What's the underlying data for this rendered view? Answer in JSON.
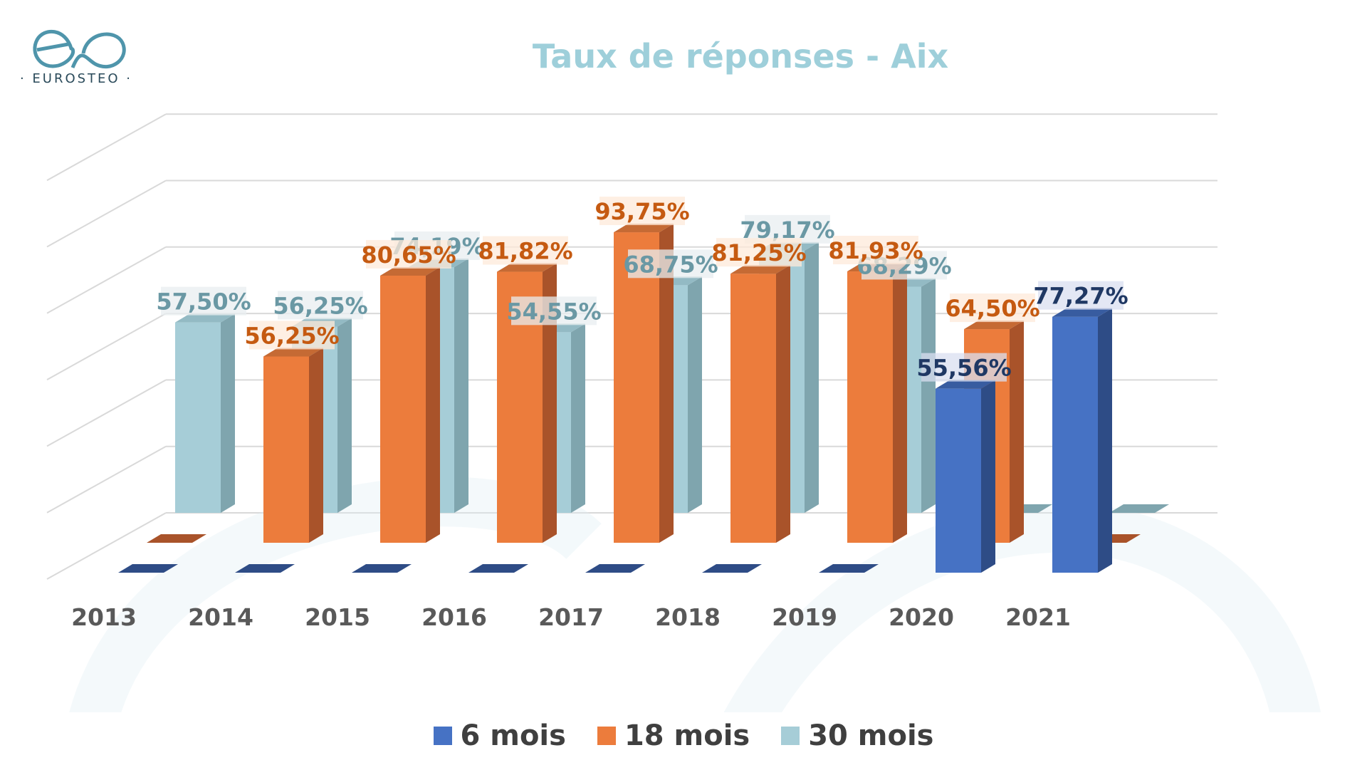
{
  "logo": {
    "text": "· EUROSTEO ·"
  },
  "colors": {
    "s6": "#4672c4",
    "s6_side": "#2e4c86",
    "s6_top": "#385ca0",
    "s18": "#ec7c3c",
    "s18_side": "#a9532a",
    "s18_top": "#c56a34",
    "s30": "#a6cdd7",
    "s30_side": "#7fa5ae",
    "s30_top": "#93bac4",
    "label6": "#1f3864",
    "label18": "#c55a11",
    "label30": "#6a98a4",
    "axis_text": "#595959",
    "grid": "#d9d9d9"
  },
  "chart_data": {
    "type": "bar",
    "title": "Taux de réponses - Aix",
    "categories": [
      "2013",
      "2014",
      "2015",
      "2016",
      "2017",
      "2018",
      "2019",
      "2020",
      "2021"
    ],
    "series": [
      {
        "name": "6 mois",
        "values": [
          0,
          0,
          0,
          0,
          0,
          0,
          0,
          55.56,
          77.27
        ],
        "labels": [
          "",
          "",
          "",
          "",
          "",
          "",
          "",
          "55,56%",
          "77,27%"
        ]
      },
      {
        "name": "18 mois",
        "values": [
          0,
          56.25,
          80.65,
          81.82,
          93.75,
          81.25,
          81.93,
          64.5,
          0
        ],
        "labels": [
          "",
          "56,25%",
          "80,65%",
          "81,82%",
          "93,75%",
          "81,25%",
          "81,93%",
          "64,50%",
          ""
        ]
      },
      {
        "name": "30 mois",
        "values": [
          57.5,
          56.25,
          74.19,
          54.55,
          68.75,
          79.17,
          68.29,
          0,
          0
        ],
        "labels": [
          "57,50%",
          "56,25%",
          "74,19%",
          "54,55%",
          "68,75%",
          "79,17%",
          "68,29%",
          "",
          ""
        ]
      }
    ],
    "grid": true,
    "legend_position": "bottom"
  }
}
